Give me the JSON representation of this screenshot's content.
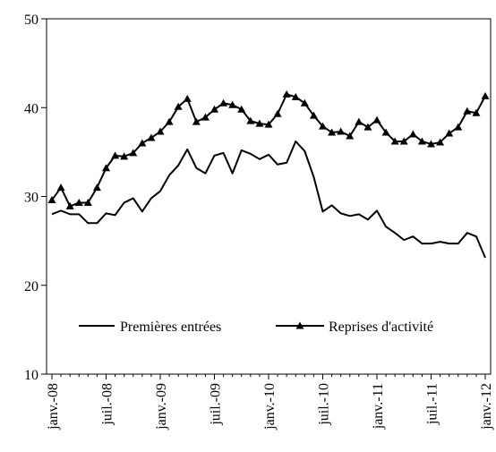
{
  "chart_data": {
    "type": "line",
    "title": "",
    "xlabel": "",
    "ylabel": "",
    "ylim": [
      10,
      50
    ],
    "yticks": [
      10,
      20,
      30,
      40,
      50
    ],
    "xticks": [
      "janv.-08",
      "juil.-08",
      "janv.-09",
      "juil.-09",
      "janv.-10",
      "juil.-10",
      "janv.-11",
      "juil.-11",
      "janv.-12"
    ],
    "grid": false,
    "legend_position": "inside-lower",
    "x_start": "2008-01",
    "x_end": "2012-01",
    "series": [
      {
        "name": "Premières entrées",
        "marker": "none",
        "color": "#000000",
        "values": [
          28.0,
          28.4,
          28.0,
          28.0,
          27.0,
          27.0,
          28.1,
          27.9,
          29.3,
          29.8,
          28.3,
          29.8,
          30.6,
          32.4,
          33.5,
          35.3,
          33.2,
          32.6,
          34.6,
          34.9,
          32.6,
          35.2,
          34.8,
          34.2,
          34.7,
          33.6,
          33.8,
          36.2,
          35.1,
          32.2,
          28.3,
          29.0,
          28.1,
          27.8,
          28.0,
          27.4,
          28.4,
          26.6,
          25.9,
          25.1,
          25.5,
          24.7,
          24.7,
          24.9,
          24.7,
          24.7,
          25.9,
          25.5,
          23.1
        ]
      },
      {
        "name": "Reprises d'activité",
        "marker": "triangle",
        "color": "#000000",
        "values": [
          29.6,
          31.0,
          28.9,
          29.3,
          29.3,
          31.0,
          33.2,
          34.6,
          34.5,
          34.9,
          36.0,
          36.6,
          37.3,
          38.4,
          40.1,
          41.0,
          38.4,
          38.9,
          39.8,
          40.5,
          40.3,
          39.8,
          38.5,
          38.2,
          38.1,
          39.3,
          41.5,
          41.2,
          40.5,
          39.1,
          37.9,
          37.2,
          37.3,
          36.8,
          38.4,
          37.8,
          38.6,
          37.2,
          36.2,
          36.2,
          37.0,
          36.2,
          35.9,
          36.1,
          37.1,
          37.8,
          39.6,
          39.4,
          41.3
        ]
      }
    ]
  }
}
